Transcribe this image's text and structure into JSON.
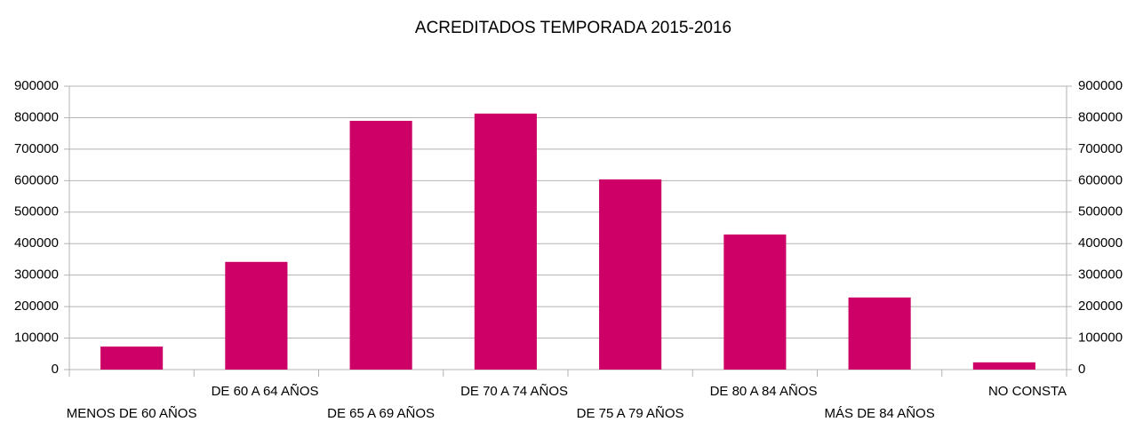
{
  "chart_data": {
    "type": "bar",
    "title": "ACREDITADOS TEMPORADA 2015-2016",
    "categories": [
      "MENOS DE 60  AÑOS",
      "DE 60 A 64 AÑOS",
      "DE 65 A 69 AÑOS",
      "DE 70 A 74 AÑOS",
      "DE 75 A 79 AÑOS",
      "DE 80 A 84 AÑOS",
      "MÁS DE 84 AÑOS",
      "NO CONSTA"
    ],
    "values": [
      73000,
      342000,
      790000,
      813000,
      604000,
      429000,
      229000,
      23000
    ],
    "color": "#cc0066",
    "ylim": [
      0,
      900000
    ],
    "yticks": [
      0,
      100000,
      200000,
      300000,
      400000,
      500000,
      600000,
      700000,
      800000,
      900000
    ],
    "y2lim": [
      0,
      900000
    ],
    "y2ticks": [
      0,
      100000,
      200000,
      300000,
      400000,
      500000,
      600000,
      700000,
      800000,
      900000
    ],
    "grid": true
  }
}
